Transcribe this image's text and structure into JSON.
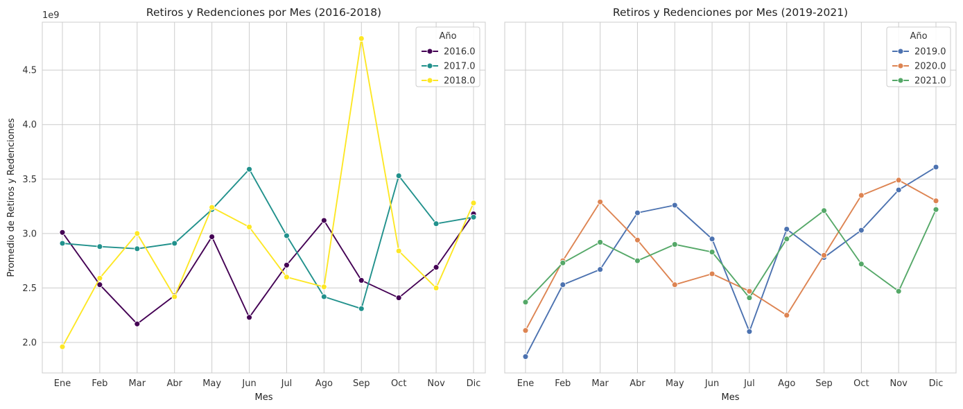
{
  "chart_data": [
    {
      "type": "line",
      "title": "Retiros y Redenciones por Mes (2016-2018)",
      "xlabel": "Mes",
      "ylabel": "Promedio de Retiros y Redenciones",
      "y_offset_label": "1e9",
      "categories": [
        "Ene",
        "Feb",
        "Mar",
        "Abr",
        "May",
        "Jun",
        "Jul",
        "Ago",
        "Sep",
        "Oct",
        "Nov",
        "Dic"
      ],
      "yticks": [
        2.0,
        2.5,
        3.0,
        3.5,
        4.0,
        4.5
      ],
      "ytick_labels": [
        "2.0",
        "2.5",
        "3.0",
        "3.5",
        "4.0",
        "4.5"
      ],
      "ylim": [
        1.72,
        4.94
      ],
      "grid": true,
      "legend": {
        "title": "Año",
        "placement": "top-right"
      },
      "series": [
        {
          "name": "2016.0",
          "color": "#440154",
          "values": [
            3.01,
            2.53,
            2.17,
            2.43,
            2.97,
            2.23,
            2.71,
            3.12,
            2.57,
            2.41,
            2.69,
            3.18
          ]
        },
        {
          "name": "2017.0",
          "color": "#21918c",
          "values": [
            2.91,
            2.88,
            2.86,
            2.91,
            3.22,
            3.59,
            2.98,
            2.42,
            2.31,
            3.53,
            3.09,
            3.15
          ]
        },
        {
          "name": "2018.0",
          "color": "#fde725",
          "values": [
            1.96,
            2.59,
            3.0,
            2.42,
            3.24,
            3.06,
            2.6,
            2.51,
            4.79,
            2.84,
            2.5,
            3.28
          ]
        }
      ]
    },
    {
      "type": "line",
      "title": "Retiros y Redenciones por Mes (2019-2021)",
      "xlabel": "Mes",
      "ylabel": "",
      "categories": [
        "Ene",
        "Feb",
        "Mar",
        "Abr",
        "May",
        "Jun",
        "Jul",
        "Ago",
        "Sep",
        "Oct",
        "Nov",
        "Dic"
      ],
      "ylim": [
        1.72,
        4.94
      ],
      "grid": true,
      "legend": {
        "title": "Año",
        "placement": "top-right"
      },
      "series": [
        {
          "name": "2019.0",
          "color": "#4c72b0",
          "values": [
            1.87,
            2.53,
            2.67,
            3.19,
            3.26,
            2.95,
            2.1,
            3.04,
            2.78,
            3.03,
            3.4,
            3.61
          ]
        },
        {
          "name": "2020.0",
          "color": "#dd8452",
          "values": [
            2.11,
            2.75,
            3.29,
            2.94,
            2.53,
            2.63,
            2.47,
            2.25,
            2.8,
            3.35,
            3.49,
            3.3
          ]
        },
        {
          "name": "2021.0",
          "color": "#55a868",
          "values": [
            2.37,
            2.73,
            2.92,
            2.75,
            2.9,
            2.83,
            2.41,
            2.95,
            3.21,
            2.72,
            2.47,
            3.22
          ]
        }
      ]
    }
  ]
}
